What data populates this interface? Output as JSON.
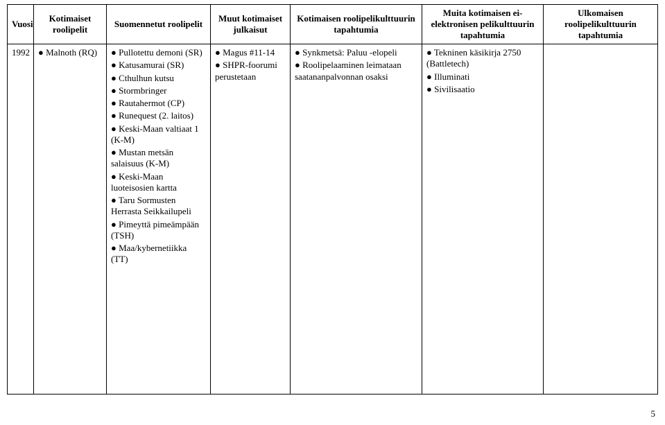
{
  "headers": {
    "c0": "Vuosi",
    "c1": "Kotimaiset roolipelit",
    "c2": "Suomennetut roolipelit",
    "c3": "Muut kotimaiset julkaisut",
    "c4": "Kotimaisen roolipelikulttuurin tapahtumia",
    "c5": "Muita kotimaisen ei-elektronisen pelikulttuurin tapahtumia",
    "c6": "Ulkomaisen roolipelikulttuurin tapahtumia"
  },
  "row": {
    "year": "1992",
    "c1": [
      "Malnoth (RQ)"
    ],
    "c2": [
      "Pullotettu demoni (SR)",
      "Katusamurai (SR)",
      "Cthulhun kutsu",
      "Stormbringer",
      "Rautahermot (CP)",
      "Runequest (2. laitos)",
      "Keski-Maan valtiaat 1 (K-M)",
      "Mustan metsän salaisuus (K-M)",
      "Keski-Maan luoteisosien kartta",
      "Taru Sormusten Herrasta Seikkailupeli",
      "Pimeyttä pimeämpään (TSH)",
      "Maa/kybernetiikka (TT)"
    ],
    "c3": [
      "Magus #11-14",
      "SHPR-foorumi perustetaan"
    ],
    "c4": [
      "Synkmetsä: Paluu -elopeli",
      "Roolipelaaminen leimataan saatananpalvonnan osaksi"
    ],
    "c5": [
      "Tekninen käsikirja 2750 (Battletech)",
      "Illuminati",
      "Sivilisaatio"
    ],
    "c6": []
  },
  "pageNumber": "5"
}
